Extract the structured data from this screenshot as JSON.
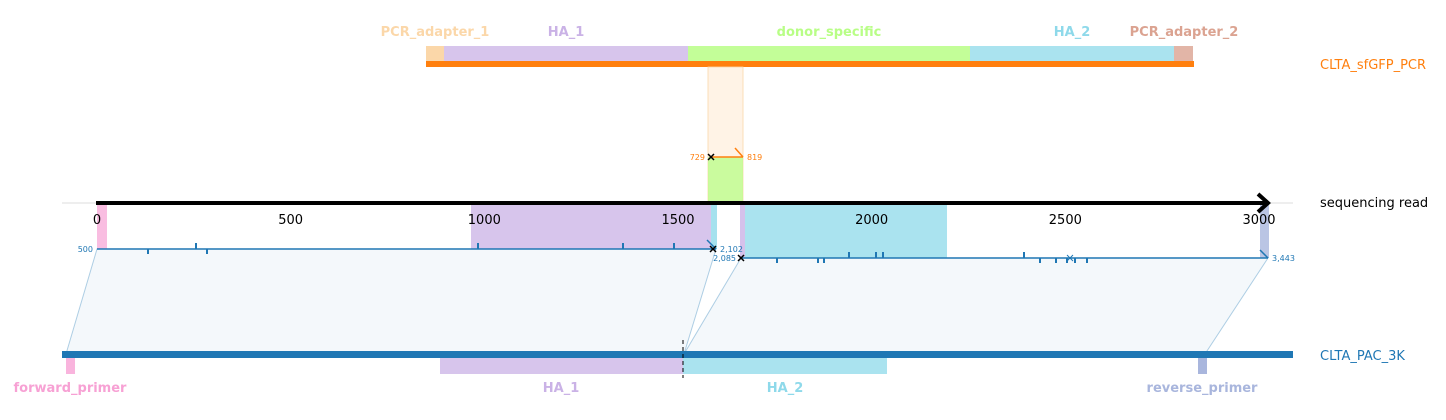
{
  "top_track": {
    "name": "CLTA_sfGFP_PCR",
    "color": "#ff7f0e",
    "features": [
      {
        "name": "PCR_adapter_1",
        "color": "#fbd7a9"
      },
      {
        "name": "HA_1",
        "color": "#cab2e6"
      },
      {
        "name": "donor_specific",
        "color": "#b8fe86"
      },
      {
        "name": "HA_2",
        "color": "#8ed9ea"
      },
      {
        "name": "PCR_adapter_2",
        "color": "#dba391"
      }
    ],
    "alignment": {
      "start_label": "729",
      "end_label": "819"
    }
  },
  "read_track": {
    "name": "sequencing read",
    "axis": {
      "min": 0,
      "max": 3000,
      "ticks": [
        "0",
        "500",
        "1000",
        "1500",
        "2000",
        "2500",
        "3000"
      ]
    },
    "segments": [
      {
        "start_label": "500",
        "end_label": "2,102",
        "color": "#1f77b4"
      },
      {
        "start_label": "2,085",
        "end_label": "3,443",
        "color": "#1f77b4"
      }
    ]
  },
  "bottom_track": {
    "name": "CLTA_PAC_3K",
    "color": "#1f77b4",
    "features": [
      {
        "name": "forward_primer",
        "color": "#f7a1d4"
      },
      {
        "name": "HA_1",
        "color": "#cab2e6"
      },
      {
        "name": "HA_2",
        "color": "#8ed9ea"
      },
      {
        "name": "reverse_primer",
        "color": "#a9b6dd"
      }
    ]
  }
}
